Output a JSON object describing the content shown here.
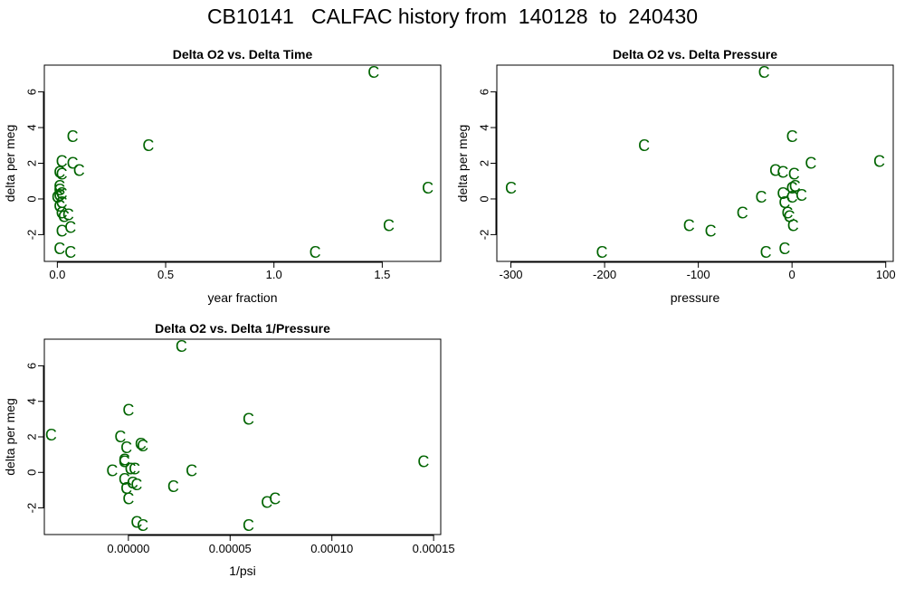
{
  "page_title": "CB10141   CALFAC history from  140128  to  240430",
  "mark_color": "#006400",
  "mark_symbol": "C",
  "chart_data": [
    {
      "type": "scatter",
      "title": "Delta O2 vs. Delta Time",
      "xlabel": "year fraction",
      "ylabel": "delta per meg",
      "xlim": [
        -0.06,
        1.77
      ],
      "ylim": [
        -3.5,
        7.5
      ],
      "xticks": [
        0.0,
        0.5,
        1.0,
        1.5
      ],
      "xtick_labels": [
        "0.0",
        "0.5",
        "1.0",
        "1.5"
      ],
      "yticks": [
        -2,
        0,
        2,
        4,
        6
      ],
      "ytick_labels": [
        "-2",
        "0",
        "2",
        "4",
        "6"
      ],
      "x": [
        0.07,
        0.42,
        0.02,
        0.07,
        0.1,
        0.01,
        0.02,
        0.01,
        0.01,
        0.02,
        0.01,
        0.0,
        0.02,
        0.01,
        0.02,
        0.05,
        0.03,
        0.06,
        0.02,
        0.01,
        0.06,
        1.46,
        1.71,
        1.53,
        1.19
      ],
      "y": [
        3.5,
        3.0,
        2.1,
        2.0,
        1.6,
        1.5,
        1.4,
        0.7,
        0.5,
        0.3,
        0.2,
        0.1,
        -0.2,
        -0.4,
        -0.8,
        -0.9,
        -1.0,
        -1.6,
        -1.8,
        -2.8,
        -3.0,
        7.1,
        0.6,
        -1.5,
        -3.0
      ]
    },
    {
      "type": "scatter",
      "title": "Delta O2 vs. Delta Pressure",
      "xlabel": "pressure",
      "ylabel": "delta per meg",
      "xlim": [
        -315,
        108
      ],
      "ylim": [
        -3.5,
        7.5
      ],
      "xticks": [
        -300,
        -200,
        -100,
        0,
        100
      ],
      "xtick_labels": [
        "-300",
        "-200",
        "-100",
        "0",
        "100"
      ],
      "yticks": [
        -2,
        0,
        2,
        4,
        6
      ],
      "ytick_labels": [
        "-2",
        "0",
        "2",
        "4",
        "6"
      ],
      "x": [
        -30,
        -300,
        -158,
        -203,
        -110,
        -87,
        -53,
        -33,
        -28,
        -8,
        -18,
        -10,
        -10,
        -8,
        -5,
        -3,
        0,
        0,
        1,
        2,
        3,
        10,
        20,
        93,
        0
      ],
      "y": [
        7.1,
        0.6,
        3.0,
        -3.0,
        -1.5,
        -1.8,
        -0.8,
        0.1,
        -3.0,
        -2.8,
        1.6,
        1.5,
        0.3,
        -0.2,
        -0.8,
        -1.0,
        0.6,
        3.5,
        -1.5,
        1.4,
        0.7,
        0.2,
        2.0,
        2.1,
        0.1
      ]
    },
    {
      "type": "scatter",
      "title": "Delta O2 vs. Delta 1/Pressure",
      "xlabel": "1/psi",
      "ylabel": "delta per meg",
      "xlim": [
        -4.13e-05,
        0.0001535
      ],
      "ylim": [
        -3.5,
        7.5
      ],
      "xticks": [
        0,
        5e-05,
        0.0001,
        0.00015
      ],
      "xtick_labels": [
        "0.00000",
        "0.00005",
        "0.00010",
        "0.00015"
      ],
      "yticks": [
        -2,
        0,
        2,
        4,
        6
      ],
      "ytick_labels": [
        "-2",
        "0",
        "2",
        "4",
        "6"
      ],
      "x": [
        -3.8e-05,
        0.0,
        2.6e-05,
        5.9e-05,
        -4e-06,
        -1e-06,
        6e-06,
        7e-06,
        -2e-06,
        -2e-06,
        -8e-06,
        1e-06,
        3e-06,
        3.1e-05,
        -2e-06,
        4e-06,
        -1e-06,
        2e-06,
        2.2e-05,
        6.8e-05,
        7.2e-05,
        4e-06,
        7e-06,
        5.9e-05,
        0.000145,
        0.0
      ],
      "y": [
        2.1,
        3.5,
        7.1,
        3.0,
        2.0,
        1.4,
        1.6,
        1.5,
        0.7,
        0.6,
        0.1,
        0.2,
        0.2,
        0.1,
        -0.4,
        -0.7,
        -0.9,
        -0.6,
        -0.8,
        -1.7,
        -1.5,
        -2.8,
        -3.0,
        -3.0,
        0.6,
        -1.5
      ]
    }
  ]
}
